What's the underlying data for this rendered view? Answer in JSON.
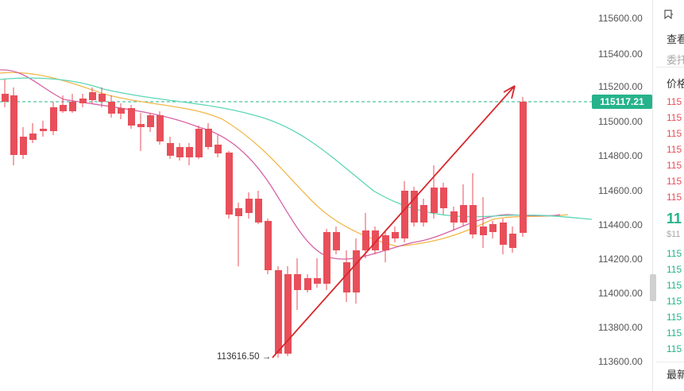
{
  "chart": {
    "price_ticks": [
      "115600.00",
      "115400.00",
      "115200.00",
      "115000.00",
      "114800.00",
      "114600.00",
      "114400.00",
      "114200.00",
      "114000.00",
      "113800.00",
      "113600.00"
    ],
    "current_price": "115117.21",
    "low_label": "113616.50",
    "low_arrow": "→",
    "colors": {
      "up": "#26b38b",
      "down": "#e84f5a",
      "ma_orange": "#f2b84b",
      "ma_pink": "#d663a6",
      "ma_teal": "#5cd6b5",
      "arrow": "#d8282c"
    }
  },
  "side_panel": {
    "top_icon": "bookmark-icon",
    "view_label": "查看",
    "order_label": "委托",
    "price_header": "价格",
    "asks": [
      "115",
      "115",
      "115",
      "115",
      "115",
      "115",
      "115"
    ],
    "last_price": "11",
    "last_price_usd": "$11",
    "bids": [
      "115",
      "115",
      "115",
      "115",
      "115",
      "115",
      "115"
    ],
    "latest_label": "最新"
  }
}
